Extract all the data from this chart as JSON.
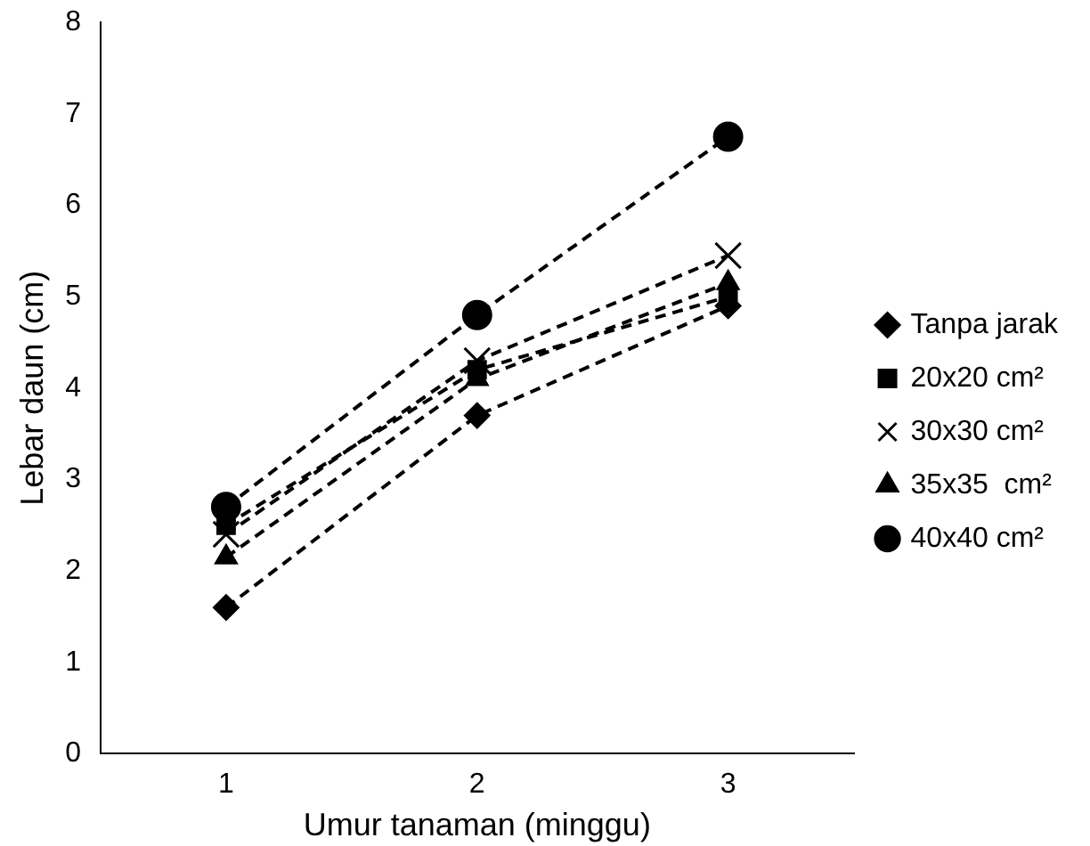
{
  "chart_data": {
    "type": "line",
    "xlabel": "Umur tanaman (minggu)",
    "ylabel": "Lebar daun (cm)",
    "categories": [
      "1",
      "2",
      "3"
    ],
    "series": [
      {
        "name": "Tanpa jarak",
        "color": "#000000",
        "marker": "diamond",
        "values": [
          1.6,
          3.7,
          4.9
        ]
      },
      {
        "name": "20x20 cm²",
        "color": "#000000",
        "marker": "square",
        "values": [
          2.5,
          4.2,
          5.0
        ]
      },
      {
        "name": "30x30 cm²",
        "color": "#000000",
        "marker": "cross",
        "values": [
          2.4,
          4.3,
          5.45
        ]
      },
      {
        "name": "35x35  cm²",
        "color": "#000000",
        "marker": "triangle",
        "values": [
          2.15,
          4.1,
          5.15
        ]
      },
      {
        "name": "40x40 cm²",
        "color": "#000000",
        "marker": "circle",
        "values": [
          2.7,
          4.8,
          6.75
        ]
      }
    ],
    "ylim": [
      0,
      8
    ],
    "yticks": [
      0,
      1,
      2,
      3,
      4,
      5,
      6,
      7,
      8
    ],
    "grid": false,
    "legend": "right",
    "line_style": "dashed"
  }
}
